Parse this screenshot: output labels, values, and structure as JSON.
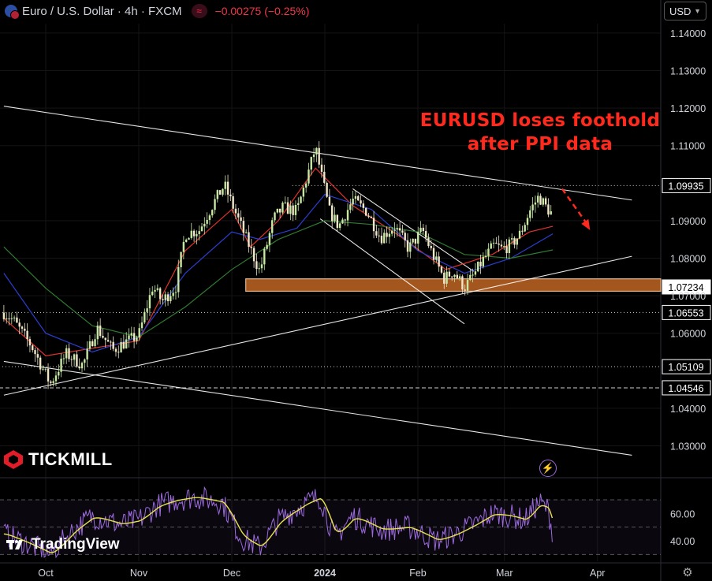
{
  "header": {
    "symbol": "Euro / U.S. Dollar · 4h · FXCM",
    "change": "−0.00275 (−0.25%)",
    "flag_icon": "eur-usd-flag-icon"
  },
  "currency_selector": {
    "value": "USD"
  },
  "headline": {
    "line1": "EURUSD loses foothold",
    "line2": "after PPI data"
  },
  "branding": {
    "broker": "TICKMILL",
    "platform": "TradingView"
  },
  "colors": {
    "background": "#000000",
    "up": "#c7e8a2",
    "down": "#f0e6c8",
    "ema_fast": "#e0332c",
    "ema_mid": "#2a3fd1",
    "ema_slow": "#2f7a2f",
    "zone": "#a4561f",
    "headline": "#ff2a1d",
    "rsi": "#9c6ade",
    "rsi_signal": "#e8e24a"
  },
  "chart_data": {
    "type": "candlestick",
    "ylim": [
      1.0215,
      1.1425
    ],
    "y_ticks": [
      "1.14000",
      "1.13000",
      "1.12000",
      "1.11000",
      "1.09000",
      "1.08000",
      "1.07000",
      "1.06000",
      "1.04000",
      "1.03000"
    ],
    "y_tick_values": [
      1.14,
      1.13,
      1.12,
      1.11,
      1.09,
      1.08,
      1.07,
      1.06,
      1.04,
      1.03
    ],
    "x_labels": [
      {
        "label": "Oct",
        "t": 0.0,
        "bold": false
      },
      {
        "label": "Nov",
        "t": 1.0,
        "bold": false
      },
      {
        "label": "Dec",
        "t": 2.0,
        "bold": false
      },
      {
        "label": "2024",
        "t": 3.0,
        "bold": true
      },
      {
        "label": "Feb",
        "t": 4.0,
        "bold": false
      },
      {
        "label": "Mar",
        "t": 4.93,
        "bold": false
      },
      {
        "label": "Apr",
        "t": 5.93,
        "bold": false
      }
    ],
    "price_levels": [
      {
        "label": "1.09935",
        "value": 1.09935,
        "style": "dotted",
        "highlight": false,
        "t_start": 2.65
      },
      {
        "label": "1.07234",
        "value": 1.07234,
        "style": "none",
        "highlight": true,
        "t_start": 2.15
      },
      {
        "label": "1.06553",
        "value": 1.06553,
        "style": "dotted",
        "highlight": false,
        "t_start": -0.5
      },
      {
        "label": "1.05109",
        "value": 1.05109,
        "style": "dotted",
        "highlight": false,
        "t_start": -0.5
      },
      {
        "label": "1.04546",
        "value": 1.04546,
        "style": "dashed",
        "highlight": false,
        "t_start": -0.5
      }
    ],
    "support_zone": {
      "low": 1.0712,
      "high": 1.0745,
      "t_start": 2.15
    },
    "price_path": [
      [
        -0.45,
        1.0655
      ],
      [
        -0.35,
        1.0635
      ],
      [
        -0.15,
        1.0565
      ],
      [
        0.05,
        1.0465
      ],
      [
        0.22,
        1.0545
      ],
      [
        0.4,
        1.0515
      ],
      [
        0.55,
        1.0615
      ],
      [
        0.72,
        1.0555
      ],
      [
        0.85,
        1.0575
      ],
      [
        1.0,
        1.0595
      ],
      [
        1.15,
        1.0725
      ],
      [
        1.25,
        1.0685
      ],
      [
        1.4,
        1.0725
      ],
      [
        1.5,
        1.0865
      ],
      [
        1.65,
        1.0875
      ],
      [
        1.8,
        1.0945
      ],
      [
        1.92,
        1.0995
      ],
      [
        2.05,
        1.0915
      ],
      [
        2.2,
        1.0825
      ],
      [
        2.3,
        1.0765
      ],
      [
        2.45,
        1.0905
      ],
      [
        2.55,
        1.0935
      ],
      [
        2.7,
        1.0925
      ],
      [
        2.83,
        1.1035
      ],
      [
        2.9,
        1.1095
      ],
      [
        2.95,
        1.1035
      ],
      [
        3.05,
        1.0925
      ],
      [
        3.15,
        1.0885
      ],
      [
        3.3,
        1.0955
      ],
      [
        3.45,
        1.0925
      ],
      [
        3.6,
        1.0855
      ],
      [
        3.75,
        1.0885
      ],
      [
        3.9,
        1.0825
      ],
      [
        4.05,
        1.0875
      ],
      [
        4.15,
        1.0815
      ],
      [
        4.28,
        1.0745
      ],
      [
        4.38,
        1.0765
      ],
      [
        4.5,
        1.0722
      ],
      [
        4.6,
        1.0755
      ],
      [
        4.7,
        1.0795
      ],
      [
        4.82,
        1.0835
      ],
      [
        4.9,
        1.0825
      ],
      [
        5.0,
        1.0835
      ],
      [
        5.1,
        1.0865
      ],
      [
        5.2,
        1.0925
      ],
      [
        5.3,
        1.0965
      ],
      [
        5.38,
        1.0935
      ],
      [
        5.45,
        1.0915
      ]
    ],
    "series": [
      {
        "name": "",
        "color_key": "ema_fast",
        "points": [
          [
            -0.45,
            1.064
          ],
          [
            0,
            1.054
          ],
          [
            0.5,
            1.056
          ],
          [
            1.0,
            1.058
          ],
          [
            1.5,
            1.082
          ],
          [
            2.0,
            1.093
          ],
          [
            2.2,
            1.083
          ],
          [
            2.5,
            1.09
          ],
          [
            2.9,
            1.104
          ],
          [
            3.3,
            1.094
          ],
          [
            3.8,
            1.086
          ],
          [
            4.3,
            1.077
          ],
          [
            4.8,
            1.081
          ],
          [
            5.2,
            1.087
          ],
          [
            5.45,
            1.0885
          ]
        ]
      },
      {
        "name": "",
        "color_key": "ema_mid",
        "points": [
          [
            -0.45,
            1.076
          ],
          [
            0,
            1.06
          ],
          [
            0.5,
            1.055
          ],
          [
            1.0,
            1.059
          ],
          [
            1.5,
            1.076
          ],
          [
            2.0,
            1.087
          ],
          [
            2.3,
            1.085
          ],
          [
            2.7,
            1.088
          ],
          [
            3.0,
            1.097
          ],
          [
            3.5,
            1.093
          ],
          [
            4.0,
            1.082
          ],
          [
            4.5,
            1.076
          ],
          [
            5.0,
            1.08
          ],
          [
            5.45,
            1.0865
          ]
        ]
      },
      {
        "name": "",
        "color_key": "ema_slow",
        "points": [
          [
            -0.45,
            1.083
          ],
          [
            0,
            1.072
          ],
          [
            0.5,
            1.062
          ],
          [
            1.0,
            1.059
          ],
          [
            1.5,
            1.067
          ],
          [
            2.0,
            1.077
          ],
          [
            2.5,
            1.085
          ],
          [
            3.0,
            1.09
          ],
          [
            3.5,
            1.089
          ],
          [
            4.0,
            1.087
          ],
          [
            4.5,
            1.081
          ],
          [
            5.0,
            1.08
          ],
          [
            5.45,
            1.0822
          ]
        ]
      }
    ],
    "trendlines": [
      {
        "from": [
          -0.45,
          1.1205
        ],
        "to": [
          6.3,
          1.0955
        ],
        "color": "#ffffff"
      },
      {
        "from": [
          -0.45,
          1.0435
        ],
        "to": [
          6.3,
          1.0805
        ],
        "color": "#ffffff"
      },
      {
        "from": [
          -0.45,
          1.0525
        ],
        "to": [
          6.3,
          1.0275
        ],
        "color": "#ffffff"
      },
      {
        "from": [
          3.3,
          1.0985
        ],
        "to": [
          4.6,
          1.0765
        ],
        "color": "#ffffff"
      },
      {
        "from": [
          2.95,
          1.0905
        ],
        "to": [
          4.5,
          1.0625
        ],
        "color": "#ffffff"
      }
    ],
    "projection_arrow": {
      "from": [
        5.55,
        1.0985
      ],
      "to": [
        5.85,
        1.0875
      ],
      "color_key": "headline"
    },
    "rsi": {
      "ylim": [
        25,
        85
      ],
      "y_ticks": [
        "60.00",
        "40.00"
      ],
      "y_tick_values": [
        60,
        40
      ],
      "levels": [
        70,
        50,
        30
      ],
      "path": [
        [
          -0.45,
          45
        ],
        [
          -0.2,
          38
        ],
        [
          0.05,
          30
        ],
        [
          0.3,
          48
        ],
        [
          0.5,
          58
        ],
        [
          0.8,
          52
        ],
        [
          1.0,
          55
        ],
        [
          1.2,
          66
        ],
        [
          1.4,
          70
        ],
        [
          1.6,
          72
        ],
        [
          1.9,
          68
        ],
        [
          2.1,
          42
        ],
        [
          2.3,
          35
        ],
        [
          2.5,
          55
        ],
        [
          2.8,
          68
        ],
        [
          2.95,
          72
        ],
        [
          3.1,
          42
        ],
        [
          3.3,
          58
        ],
        [
          3.6,
          48
        ],
        [
          3.9,
          50
        ],
        [
          4.2,
          40
        ],
        [
          4.4,
          45
        ],
        [
          4.6,
          52
        ],
        [
          4.8,
          60
        ],
        [
          5.0,
          58
        ],
        [
          5.15,
          55
        ],
        [
          5.3,
          68
        ],
        [
          5.4,
          63
        ],
        [
          5.45,
          45
        ]
      ]
    }
  }
}
